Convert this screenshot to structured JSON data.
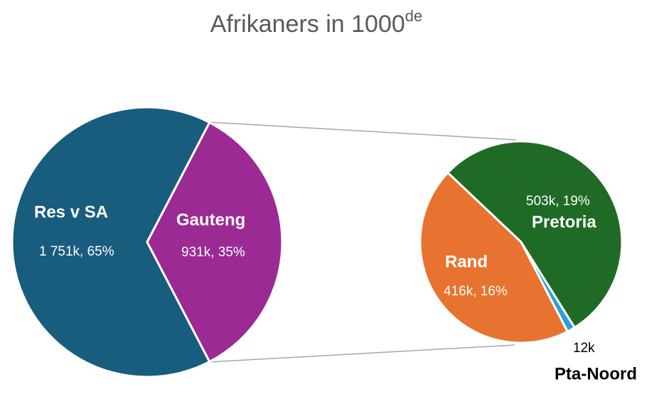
{
  "chart_data": {
    "type": "pie-of-pie",
    "title": "Afrikaners in 1000",
    "title_superscript": "de",
    "categories": [
      "Res v SA",
      "Gauteng"
    ],
    "values": [
      1751,
      931
    ],
    "value_labels": [
      "1 751k, 65%",
      "931k, 35%"
    ],
    "colors": [
      "#185c7e",
      "#9b2a94"
    ],
    "secondary": {
      "categories": [
        "Pretoria",
        "Pta-Noord",
        "Rand"
      ],
      "values": [
        503,
        12,
        416
      ],
      "value_labels": [
        "503k, 19%",
        "12k",
        "416k, 16%"
      ],
      "colors": [
        "#1f6b25",
        "#2f9ed6",
        "#e8722f"
      ]
    }
  }
}
